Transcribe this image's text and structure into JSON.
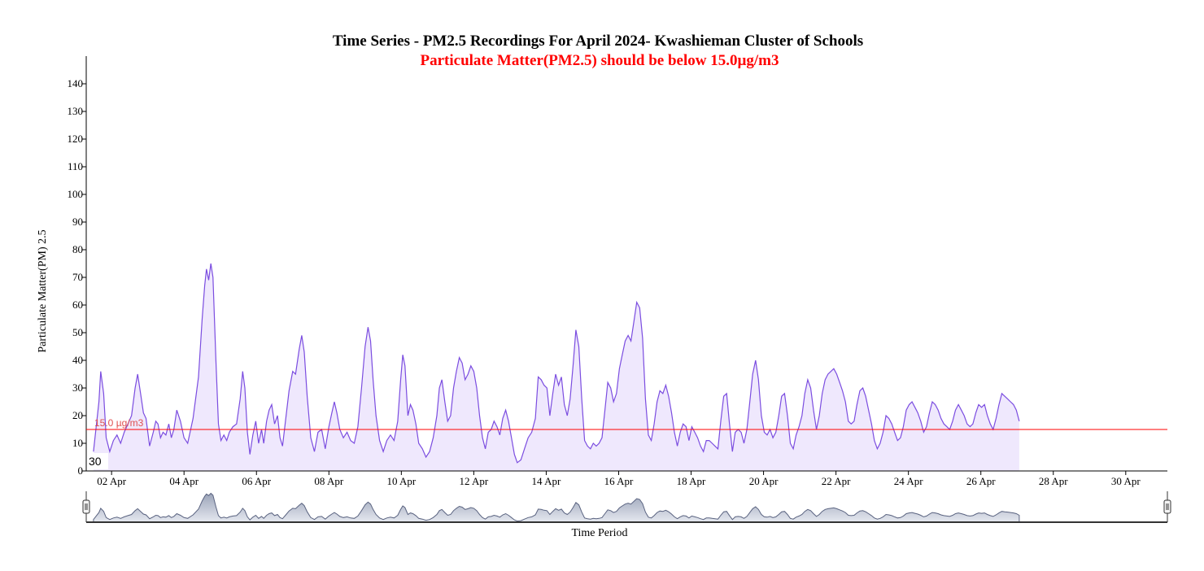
{
  "chart_data": {
    "type": "area",
    "title": "Time Series - PM2.5 Recordings For April 2024- Kwashieman Cluster of Schools",
    "subtitle": "Particulate Matter(PM2.5) should be below 15.0µg/m3",
    "xlabel": "Time Period",
    "ylabel": "Particulate Matter(PM) 2.5",
    "ylim": [
      0,
      150
    ],
    "y_ticks": [
      0,
      10,
      20,
      30,
      40,
      50,
      60,
      70,
      80,
      90,
      100,
      110,
      120,
      130,
      140
    ],
    "x_range_days": [
      1.3,
      31.15
    ],
    "x_ticks": [
      {
        "day": 2,
        "label": "02 Apr"
      },
      {
        "day": 4,
        "label": "04 Apr"
      },
      {
        "day": 6,
        "label": "06 Apr"
      },
      {
        "day": 8,
        "label": "08 Apr"
      },
      {
        "day": 10,
        "label": "10 Apr"
      },
      {
        "day": 12,
        "label": "12 Apr"
      },
      {
        "day": 14,
        "label": "14 Apr"
      },
      {
        "day": 16,
        "label": "16 Apr"
      },
      {
        "day": 18,
        "label": "18 Apr"
      },
      {
        "day": 20,
        "label": "20 Apr"
      },
      {
        "day": 22,
        "label": "22 Apr"
      },
      {
        "day": 24,
        "label": "24 Apr"
      },
      {
        "day": 26,
        "label": "26 Apr"
      },
      {
        "day": 28,
        "label": "28 Apr"
      },
      {
        "day": 30,
        "label": "30 Apr"
      }
    ],
    "threshold": {
      "value": 15.0,
      "label": "15.0 µg/m3",
      "color": "#ff0000"
    },
    "cursor_label": "30",
    "series_color": "#7b4de0",
    "fill_color": "#efe8fd",
    "series": [
      {
        "values": [
          [
            1.5,
            7
          ],
          [
            1.65,
            25
          ],
          [
            1.7,
            36
          ],
          [
            1.78,
            28
          ],
          [
            1.85,
            12
          ],
          [
            1.95,
            7
          ],
          [
            2.05,
            11
          ],
          [
            2.15,
            13
          ],
          [
            2.25,
            10
          ],
          [
            2.35,
            14
          ],
          [
            2.45,
            17
          ],
          [
            2.55,
            20
          ],
          [
            2.65,
            30
          ],
          [
            2.72,
            35
          ],
          [
            2.8,
            28
          ],
          [
            2.88,
            21
          ],
          [
            2.95,
            19
          ],
          [
            3.05,
            9
          ],
          [
            3.15,
            14
          ],
          [
            3.22,
            18
          ],
          [
            3.28,
            17
          ],
          [
            3.35,
            12
          ],
          [
            3.42,
            14
          ],
          [
            3.5,
            13
          ],
          [
            3.58,
            17
          ],
          [
            3.65,
            12
          ],
          [
            3.72,
            15
          ],
          [
            3.8,
            22
          ],
          [
            3.9,
            18
          ],
          [
            4.0,
            12
          ],
          [
            4.1,
            10
          ],
          [
            4.25,
            19
          ],
          [
            4.4,
            34
          ],
          [
            4.5,
            55
          ],
          [
            4.57,
            67
          ],
          [
            4.62,
            73
          ],
          [
            4.68,
            69
          ],
          [
            4.74,
            75
          ],
          [
            4.8,
            70
          ],
          [
            4.88,
            40
          ],
          [
            4.95,
            17
          ],
          [
            5.02,
            11
          ],
          [
            5.1,
            13
          ],
          [
            5.18,
            11
          ],
          [
            5.25,
            14
          ],
          [
            5.35,
            16
          ],
          [
            5.45,
            17
          ],
          [
            5.55,
            26
          ],
          [
            5.62,
            36
          ],
          [
            5.68,
            30
          ],
          [
            5.75,
            14
          ],
          [
            5.82,
            6
          ],
          [
            5.9,
            13
          ],
          [
            5.98,
            18
          ],
          [
            6.06,
            10
          ],
          [
            6.14,
            15
          ],
          [
            6.2,
            10
          ],
          [
            6.28,
            18
          ],
          [
            6.35,
            22
          ],
          [
            6.42,
            24
          ],
          [
            6.5,
            17
          ],
          [
            6.58,
            20
          ],
          [
            6.65,
            12
          ],
          [
            6.72,
            9
          ],
          [
            6.8,
            18
          ],
          [
            6.9,
            29
          ],
          [
            7.0,
            36
          ],
          [
            7.08,
            35
          ],
          [
            7.18,
            44
          ],
          [
            7.25,
            49
          ],
          [
            7.32,
            43
          ],
          [
            7.4,
            27
          ],
          [
            7.5,
            12
          ],
          [
            7.6,
            7
          ],
          [
            7.7,
            14
          ],
          [
            7.8,
            15
          ],
          [
            7.9,
            8
          ],
          [
            8.0,
            16
          ],
          [
            8.08,
            21
          ],
          [
            8.15,
            25
          ],
          [
            8.22,
            21
          ],
          [
            8.3,
            15
          ],
          [
            8.4,
            12
          ],
          [
            8.5,
            14
          ],
          [
            8.6,
            11
          ],
          [
            8.7,
            10
          ],
          [
            8.8,
            16
          ],
          [
            8.9,
            30
          ],
          [
            9.0,
            45
          ],
          [
            9.08,
            52
          ],
          [
            9.15,
            47
          ],
          [
            9.22,
            33
          ],
          [
            9.3,
            20
          ],
          [
            9.4,
            11
          ],
          [
            9.5,
            7
          ],
          [
            9.6,
            11
          ],
          [
            9.7,
            13
          ],
          [
            9.8,
            11
          ],
          [
            9.9,
            18
          ],
          [
            9.98,
            33
          ],
          [
            10.04,
            42
          ],
          [
            10.1,
            38
          ],
          [
            10.18,
            20
          ],
          [
            10.25,
            24
          ],
          [
            10.32,
            22
          ],
          [
            10.4,
            17
          ],
          [
            10.48,
            10
          ],
          [
            10.58,
            8
          ],
          [
            10.68,
            5
          ],
          [
            10.78,
            7
          ],
          [
            10.88,
            12
          ],
          [
            10.98,
            20
          ],
          [
            11.05,
            30
          ],
          [
            11.12,
            33
          ],
          [
            11.2,
            25
          ],
          [
            11.28,
            18
          ],
          [
            11.36,
            20
          ],
          [
            11.44,
            30
          ],
          [
            11.52,
            36
          ],
          [
            11.6,
            41
          ],
          [
            11.68,
            39
          ],
          [
            11.76,
            33
          ],
          [
            11.84,
            35
          ],
          [
            11.92,
            38
          ],
          [
            12.0,
            36
          ],
          [
            12.08,
            30
          ],
          [
            12.16,
            20
          ],
          [
            12.24,
            12
          ],
          [
            12.32,
            8
          ],
          [
            12.4,
            14
          ],
          [
            12.48,
            15
          ],
          [
            12.56,
            18
          ],
          [
            12.64,
            16
          ],
          [
            12.72,
            13
          ],
          [
            12.8,
            19
          ],
          [
            12.88,
            22
          ],
          [
            12.96,
            18
          ],
          [
            13.04,
            12
          ],
          [
            13.12,
            6
          ],
          [
            13.2,
            3
          ],
          [
            13.3,
            4
          ],
          [
            13.4,
            8
          ],
          [
            13.5,
            12
          ],
          [
            13.6,
            14
          ],
          [
            13.7,
            19
          ],
          [
            13.78,
            34
          ],
          [
            13.86,
            33
          ],
          [
            13.94,
            31
          ],
          [
            14.02,
            30
          ],
          [
            14.1,
            20
          ],
          [
            14.18,
            28
          ],
          [
            14.26,
            35
          ],
          [
            14.34,
            31
          ],
          [
            14.42,
            34
          ],
          [
            14.5,
            24
          ],
          [
            14.58,
            20
          ],
          [
            14.66,
            26
          ],
          [
            14.74,
            38
          ],
          [
            14.82,
            51
          ],
          [
            14.9,
            45
          ],
          [
            14.98,
            26
          ],
          [
            15.06,
            11
          ],
          [
            15.14,
            9
          ],
          [
            15.22,
            8
          ],
          [
            15.3,
            10
          ],
          [
            15.38,
            9
          ],
          [
            15.46,
            10
          ],
          [
            15.54,
            12
          ],
          [
            15.62,
            22
          ],
          [
            15.7,
            32
          ],
          [
            15.78,
            30
          ],
          [
            15.86,
            25
          ],
          [
            15.94,
            28
          ],
          [
            16.02,
            37
          ],
          [
            16.1,
            42
          ],
          [
            16.18,
            47
          ],
          [
            16.26,
            49
          ],
          [
            16.34,
            47
          ],
          [
            16.42,
            54
          ],
          [
            16.5,
            61
          ],
          [
            16.58,
            59
          ],
          [
            16.66,
            48
          ],
          [
            16.74,
            26
          ],
          [
            16.82,
            13
          ],
          [
            16.9,
            11
          ],
          [
            16.98,
            17
          ],
          [
            17.06,
            25
          ],
          [
            17.14,
            29
          ],
          [
            17.22,
            28
          ],
          [
            17.3,
            31
          ],
          [
            17.38,
            27
          ],
          [
            17.46,
            21
          ],
          [
            17.54,
            14
          ],
          [
            17.62,
            9
          ],
          [
            17.7,
            14
          ],
          [
            17.78,
            17
          ],
          [
            17.86,
            16
          ],
          [
            17.94,
            11
          ],
          [
            18.02,
            16
          ],
          [
            18.1,
            14
          ],
          [
            18.18,
            12
          ],
          [
            18.26,
            9
          ],
          [
            18.34,
            7
          ],
          [
            18.42,
            11
          ],
          [
            18.5,
            11
          ],
          [
            18.58,
            10
          ],
          [
            18.66,
            9
          ],
          [
            18.74,
            8
          ],
          [
            18.82,
            18
          ],
          [
            18.9,
            27
          ],
          [
            18.98,
            28
          ],
          [
            19.06,
            17
          ],
          [
            19.14,
            7
          ],
          [
            19.22,
            14
          ],
          [
            19.3,
            15
          ],
          [
            19.38,
            14
          ],
          [
            19.46,
            10
          ],
          [
            19.54,
            15
          ],
          [
            19.62,
            25
          ],
          [
            19.7,
            35
          ],
          [
            19.78,
            40
          ],
          [
            19.86,
            33
          ],
          [
            19.94,
            20
          ],
          [
            20.02,
            14
          ],
          [
            20.1,
            13
          ],
          [
            20.18,
            15
          ],
          [
            20.26,
            12
          ],
          [
            20.34,
            14
          ],
          [
            20.42,
            20
          ],
          [
            20.5,
            27
          ],
          [
            20.58,
            28
          ],
          [
            20.66,
            20
          ],
          [
            20.74,
            10
          ],
          [
            20.82,
            8
          ],
          [
            20.9,
            13
          ],
          [
            20.98,
            16
          ],
          [
            21.06,
            20
          ],
          [
            21.14,
            28
          ],
          [
            21.22,
            33
          ],
          [
            21.3,
            30
          ],
          [
            21.38,
            22
          ],
          [
            21.46,
            15
          ],
          [
            21.54,
            20
          ],
          [
            21.62,
            28
          ],
          [
            21.7,
            33
          ],
          [
            21.78,
            35
          ],
          [
            21.86,
            36
          ],
          [
            21.94,
            37
          ],
          [
            22.02,
            35
          ],
          [
            22.1,
            32
          ],
          [
            22.18,
            29
          ],
          [
            22.26,
            25
          ],
          [
            22.34,
            18
          ],
          [
            22.42,
            17
          ],
          [
            22.5,
            18
          ],
          [
            22.58,
            24
          ],
          [
            22.66,
            29
          ],
          [
            22.74,
            30
          ],
          [
            22.82,
            27
          ],
          [
            22.9,
            22
          ],
          [
            22.98,
            17
          ],
          [
            23.06,
            11
          ],
          [
            23.14,
            8
          ],
          [
            23.22,
            10
          ],
          [
            23.3,
            14
          ],
          [
            23.38,
            20
          ],
          [
            23.46,
            19
          ],
          [
            23.54,
            17
          ],
          [
            23.62,
            14
          ],
          [
            23.7,
            11
          ],
          [
            23.78,
            12
          ],
          [
            23.86,
            16
          ],
          [
            23.94,
            22
          ],
          [
            24.02,
            24
          ],
          [
            24.1,
            25
          ],
          [
            24.18,
            23
          ],
          [
            24.26,
            21
          ],
          [
            24.34,
            18
          ],
          [
            24.42,
            14
          ],
          [
            24.5,
            16
          ],
          [
            24.58,
            21
          ],
          [
            24.66,
            25
          ],
          [
            24.74,
            24
          ],
          [
            24.82,
            22
          ],
          [
            24.9,
            19
          ],
          [
            24.98,
            17
          ],
          [
            25.06,
            16
          ],
          [
            25.14,
            15
          ],
          [
            25.22,
            18
          ],
          [
            25.3,
            22
          ],
          [
            25.38,
            24
          ],
          [
            25.46,
            22
          ],
          [
            25.54,
            20
          ],
          [
            25.62,
            17
          ],
          [
            25.7,
            16
          ],
          [
            25.78,
            17
          ],
          [
            25.86,
            21
          ],
          [
            25.94,
            24
          ],
          [
            26.02,
            23
          ],
          [
            26.1,
            24
          ],
          [
            26.18,
            20
          ],
          [
            26.26,
            17
          ],
          [
            26.34,
            15
          ],
          [
            26.42,
            19
          ],
          [
            26.5,
            24
          ],
          [
            26.58,
            28
          ],
          [
            26.66,
            27
          ],
          [
            26.74,
            26
          ],
          [
            26.82,
            25
          ],
          [
            26.9,
            24
          ],
          [
            26.98,
            22
          ],
          [
            27.06,
            18
          ]
        ]
      }
    ]
  }
}
